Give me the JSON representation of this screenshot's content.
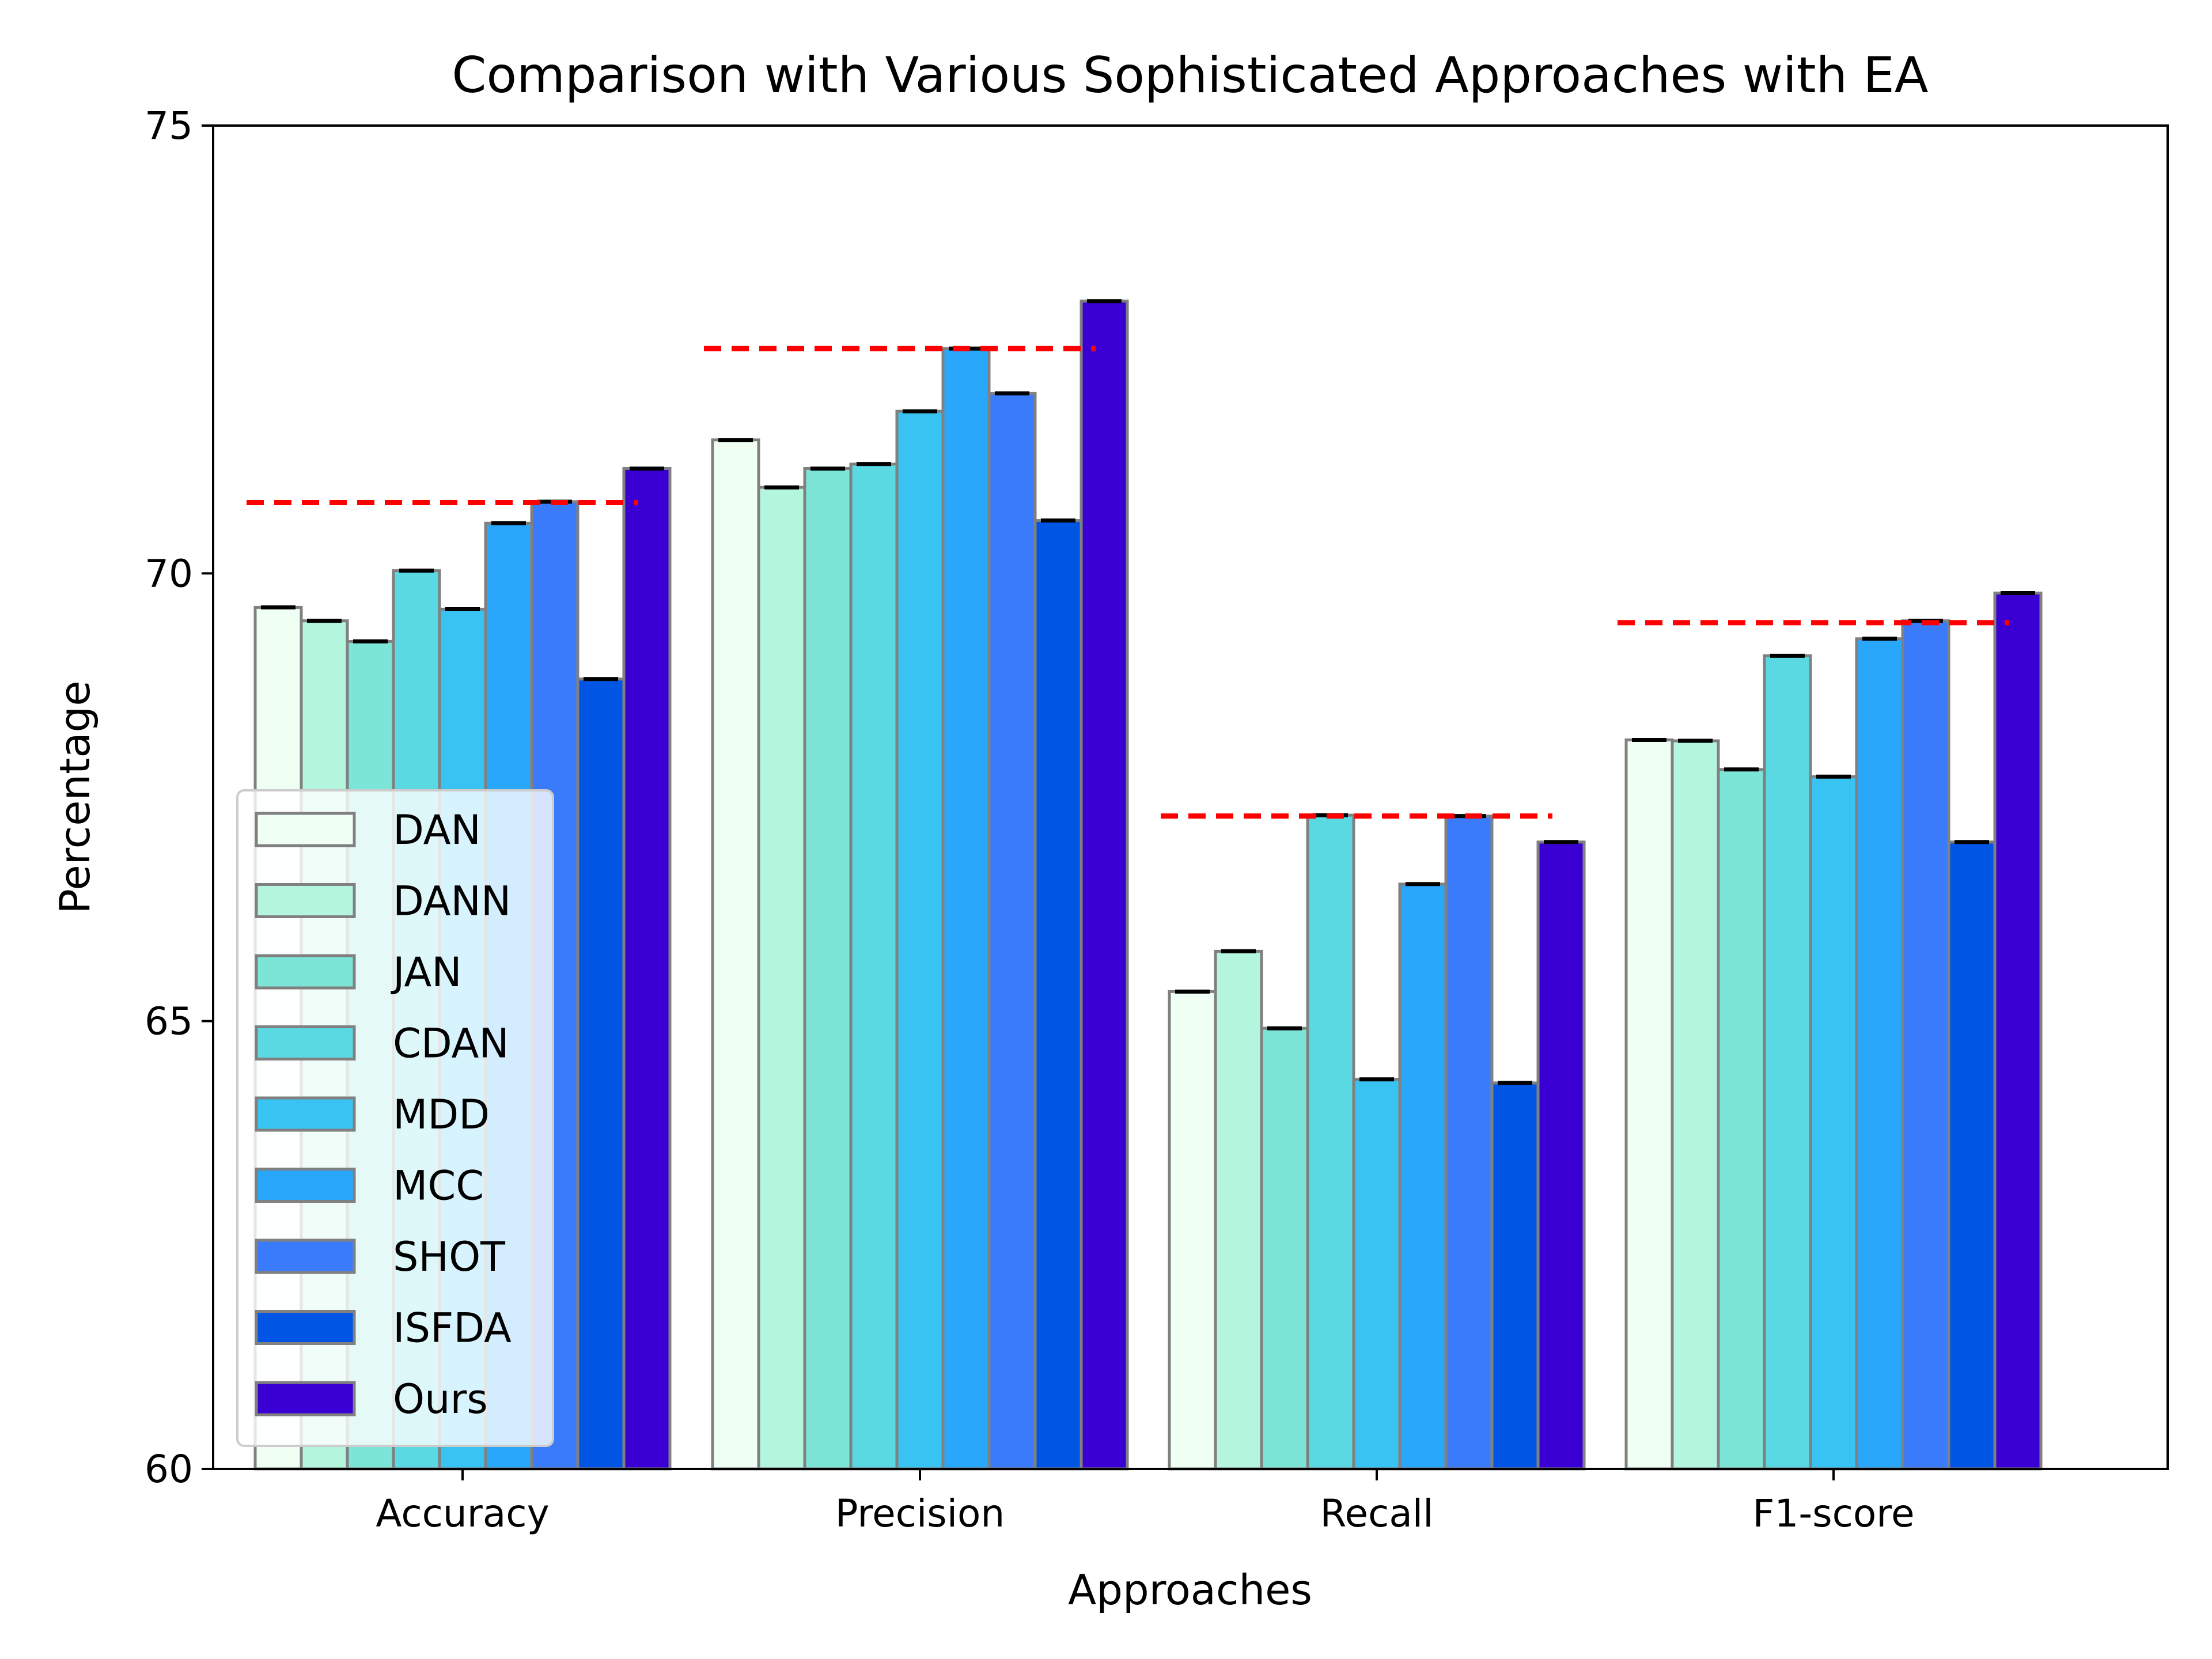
{
  "chart_data": {
    "type": "bar",
    "title": "Comparison with Various Sophisticated Approaches with EA",
    "xlabel": "Approaches",
    "ylabel": "Percentage",
    "ylim": [
      60,
      75
    ],
    "yticks": [
      "60",
      "65",
      "70",
      "75"
    ],
    "categories": [
      "Accuracy",
      "Precision",
      "Recall",
      "F1-score"
    ],
    "series": [
      {
        "name": "DAN",
        "color": "#F0FFF4",
        "values": [
          69.62,
          71.49,
          65.33,
          68.14
        ]
      },
      {
        "name": "DANN",
        "color": "#B4F5DE",
        "values": [
          69.47,
          70.96,
          65.78,
          68.13
        ]
      },
      {
        "name": "JAN",
        "color": "#7CE5D8",
        "values": [
          69.24,
          71.17,
          64.92,
          67.81
        ]
      },
      {
        "name": "CDAN",
        "color": "#5AD9E2",
        "values": [
          70.03,
          71.22,
          67.3,
          69.08
        ]
      },
      {
        "name": "MDD",
        "color": "#38C3F2",
        "values": [
          69.6,
          71.81,
          64.35,
          67.73
        ]
      },
      {
        "name": "MCC",
        "color": "#29A7FB",
        "values": [
          70.56,
          72.51,
          66.53,
          69.27
        ]
      },
      {
        "name": "SHOT",
        "color": "#3A7BFB",
        "values": [
          70.8,
          72.01,
          67.29,
          69.47
        ]
      },
      {
        "name": "ISFDA",
        "color": "#0055E4",
        "values": [
          68.82,
          70.59,
          64.31,
          67.0
        ]
      },
      {
        "name": "Ours",
        "color": "#3A00D3",
        "values": [
          71.17,
          73.04,
          67.0,
          69.78
        ]
      }
    ],
    "reference_lines": [
      70.79,
      72.51,
      67.29,
      69.45
    ],
    "reference_line_color": "#FF0000",
    "legend_position": "lower left",
    "grid": false
  }
}
